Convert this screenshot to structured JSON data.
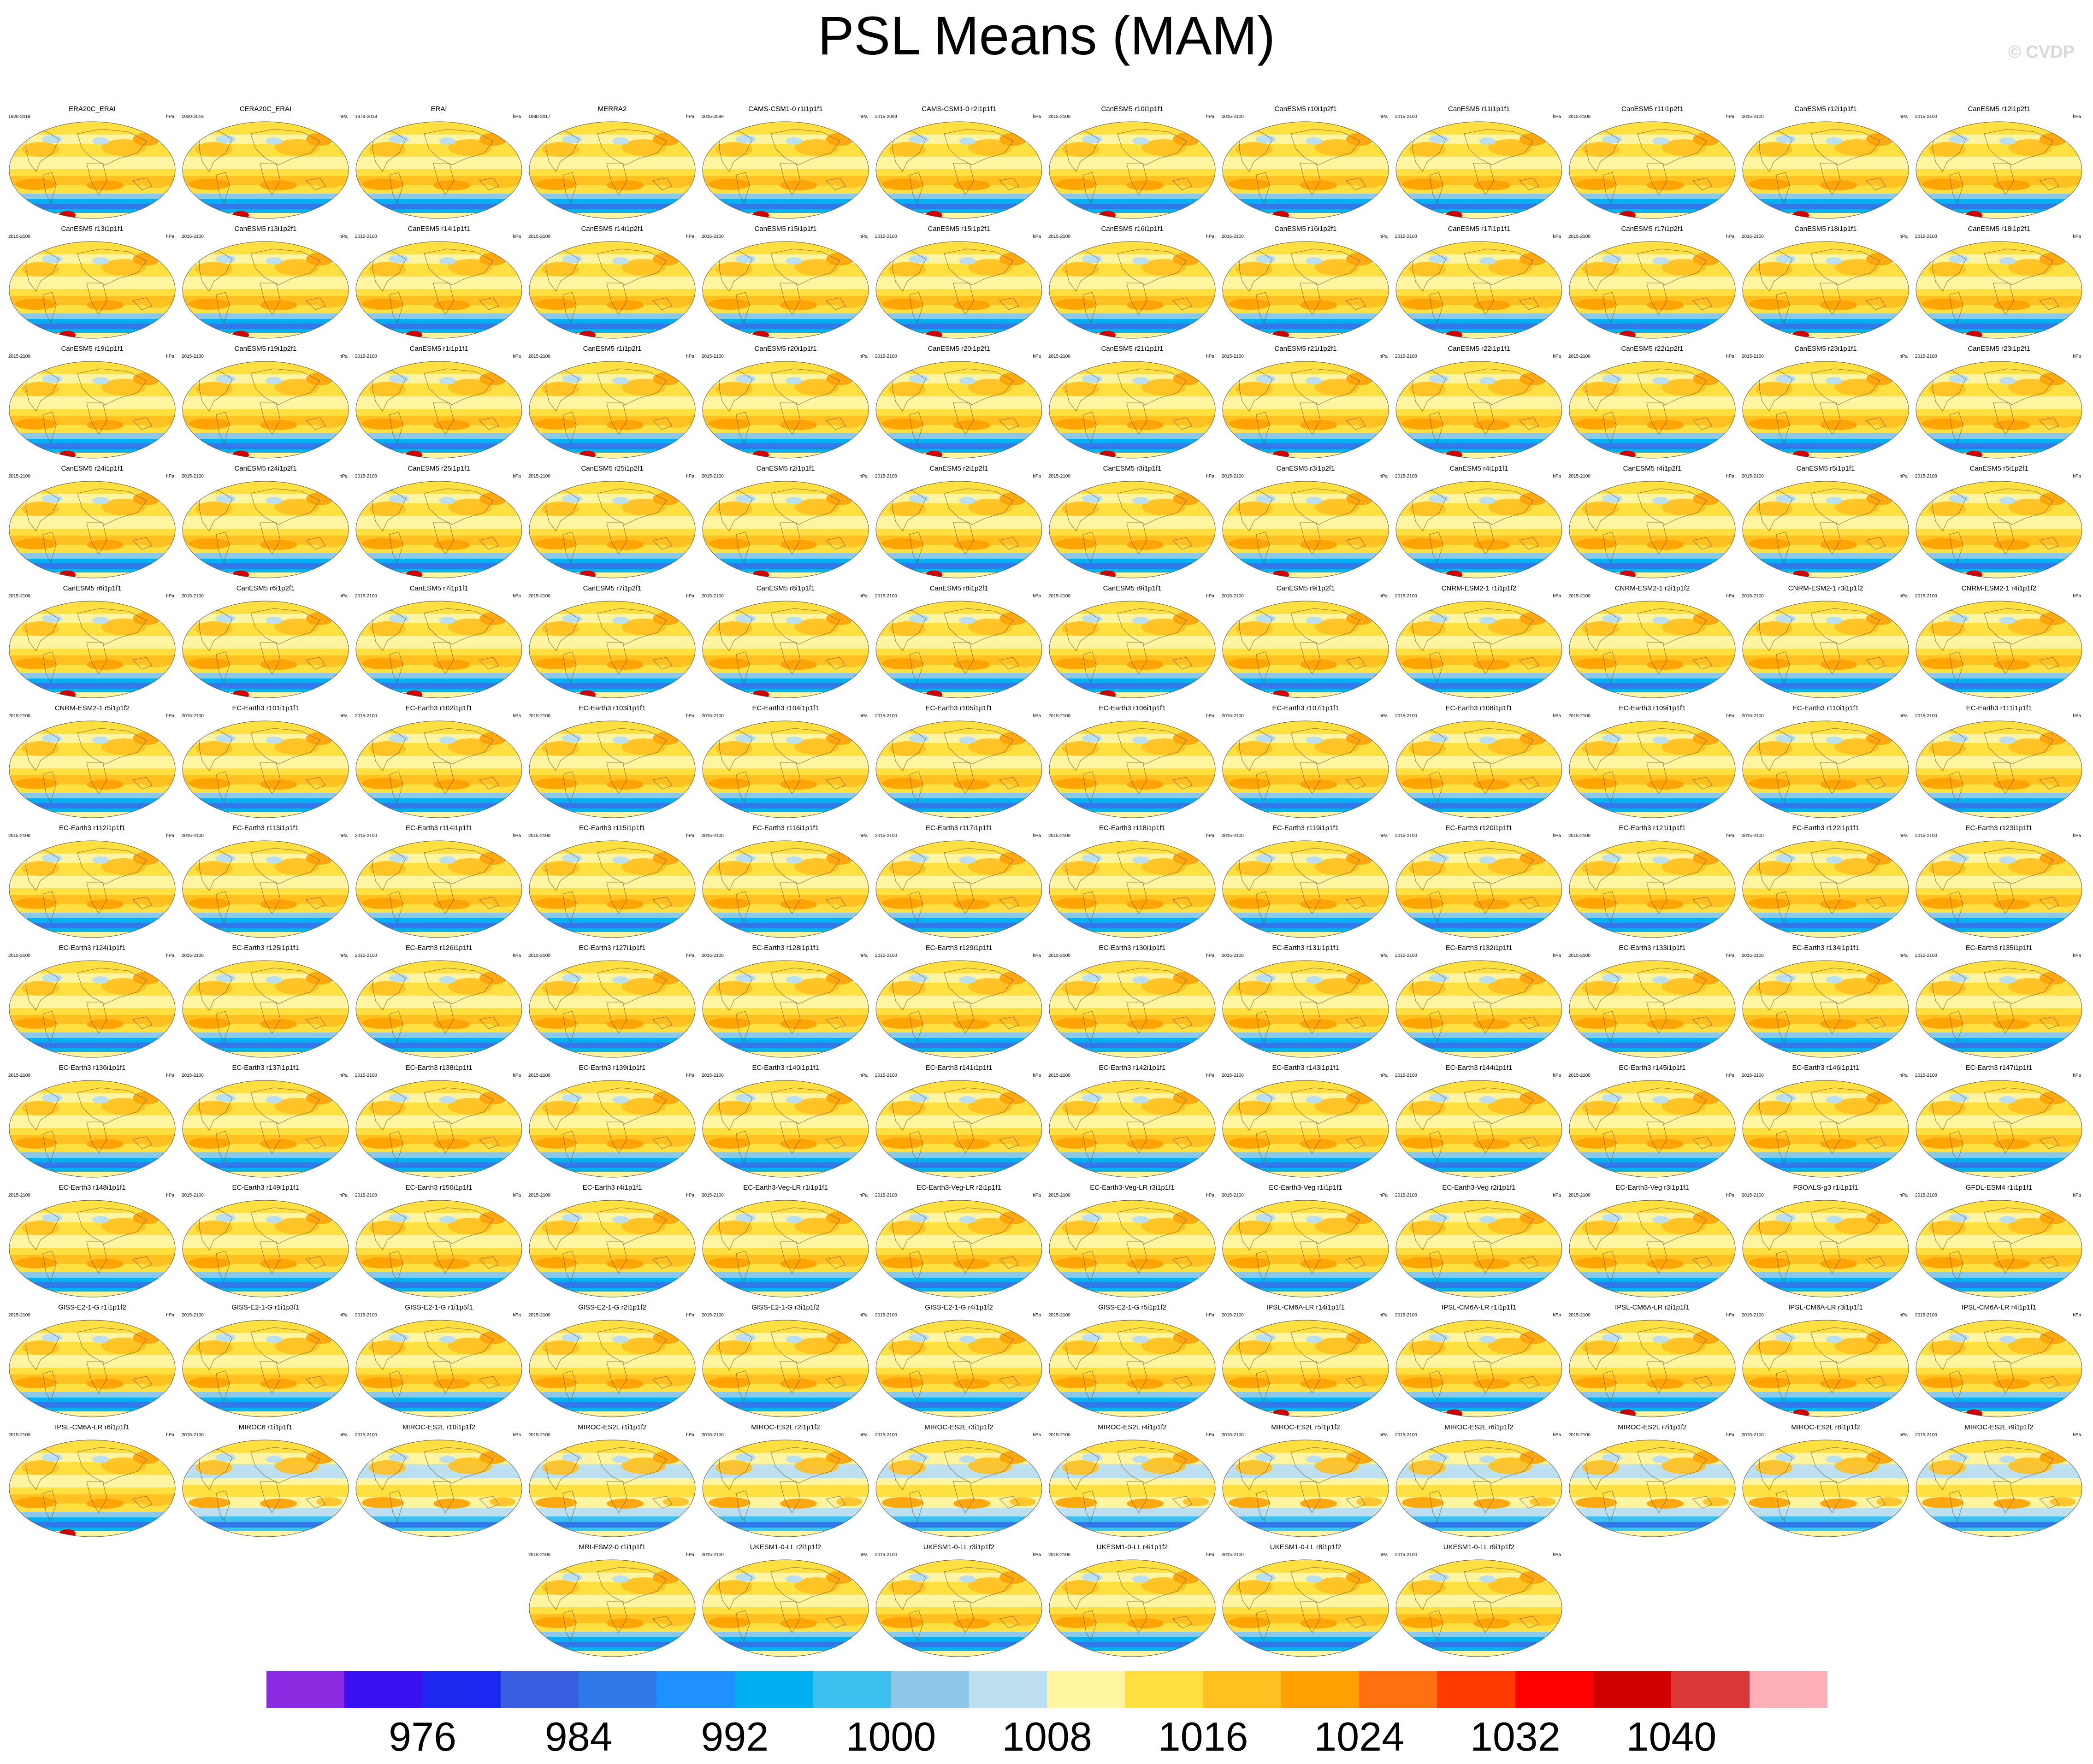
{
  "title": "PSL Means (MAM)",
  "copyright": "© CVDP",
  "chart_data": {
    "type": "heatmap",
    "title": "PSL Means (MAM)",
    "units": "hPa",
    "colorbar": {
      "tick_labels": [
        "976",
        "984",
        "992",
        "1000",
        "1008",
        "1016",
        "1024",
        "1032",
        "1040"
      ],
      "tick_values": [
        976,
        984,
        992,
        1000,
        1008,
        1016,
        1024,
        1032,
        1040
      ],
      "range": [
        968,
        1048
      ],
      "colors": [
        "#8a2be2",
        "#3a10f0",
        "#1a28f0",
        "#3a5ee0",
        "#2f7ae8",
        "#1e90ff",
        "#00b0f0",
        "#3cc0f0",
        "#8ec8e8",
        "#bde0f0",
        "#fff4a0",
        "#ffe040",
        "#ffc020",
        "#ffa000",
        "#ff7010",
        "#ff3a00",
        "#ff0000",
        "#d00000",
        "#d83838",
        "#ffb0b8"
      ]
    },
    "panels": [
      {
        "name": "ERA20C_ERAI",
        "years": "1920-2018"
      },
      {
        "name": "CERA20C_ERAI",
        "years": "1920-2018"
      },
      {
        "name": "ERAI",
        "years": "1979-2018"
      },
      {
        "name": "MERRA2",
        "years": "1980-2017"
      },
      {
        "name": "CAMS-CSM1-0 r1i1p1f1",
        "years": "2015-2099"
      },
      {
        "name": "CAMS-CSM1-0 r2i1p1f1",
        "years": "2015-2099"
      },
      {
        "name": "CanESM5 r10i1p1f1",
        "years": "2015-2100"
      },
      {
        "name": "CanESM5 r10i1p2f1",
        "years": "2015-2100"
      },
      {
        "name": "CanESM5 r11i1p1f1",
        "years": "2015-2100"
      },
      {
        "name": "CanESM5 r11i1p2f1",
        "years": "2015-2100"
      },
      {
        "name": "CanESM5 r12i1p1f1",
        "years": "2015-2100"
      },
      {
        "name": "CanESM5 r12i1p2f1",
        "years": "2015-2100"
      },
      {
        "name": "CanESM5 r13i1p1f1",
        "years": "2015-2100"
      },
      {
        "name": "CanESM5 r13i1p2f1",
        "years": "2015-2100"
      },
      {
        "name": "CanESM5 r14i1p1f1",
        "years": "2015-2100"
      },
      {
        "name": "CanESM5 r14i1p2f1",
        "years": "2015-2100"
      },
      {
        "name": "CanESM5 r15i1p1f1",
        "years": "2015-2100"
      },
      {
        "name": "CanESM5 r15i1p2f1",
        "years": "2015-2100"
      },
      {
        "name": "CanESM5 r16i1p1f1",
        "years": "2015-2100"
      },
      {
        "name": "CanESM5 r16i1p2f1",
        "years": "2015-2100"
      },
      {
        "name": "CanESM5 r17i1p1f1",
        "years": "2015-2100"
      },
      {
        "name": "CanESM5 r17i1p2f1",
        "years": "2015-2100"
      },
      {
        "name": "CanESM5 r18i1p1f1",
        "years": "2015-2100"
      },
      {
        "name": "CanESM5 r18i1p2f1",
        "years": "2015-2100"
      },
      {
        "name": "CanESM5 r19i1p1f1",
        "years": "2015-2100"
      },
      {
        "name": "CanESM5 r19i1p2f1",
        "years": "2015-2100"
      },
      {
        "name": "CanESM5 r1i1p1f1",
        "years": "2015-2100"
      },
      {
        "name": "CanESM5 r1i1p2f1",
        "years": "2015-2100"
      },
      {
        "name": "CanESM5 r20i1p1f1",
        "years": "2015-2100"
      },
      {
        "name": "CanESM5 r20i1p2f1",
        "years": "2015-2100"
      },
      {
        "name": "CanESM5 r21i1p1f1",
        "years": "2015-2100"
      },
      {
        "name": "CanESM5 r21i1p2f1",
        "years": "2015-2100"
      },
      {
        "name": "CanESM5 r22i1p1f1",
        "years": "2015-2100"
      },
      {
        "name": "CanESM5 r22i1p2f1",
        "years": "2015-2100"
      },
      {
        "name": "CanESM5 r23i1p1f1",
        "years": "2015-2100"
      },
      {
        "name": "CanESM5 r23i1p2f1",
        "years": "2015-2100"
      },
      {
        "name": "CanESM5 r24i1p1f1",
        "years": "2015-2100"
      },
      {
        "name": "CanESM5 r24i1p2f1",
        "years": "2015-2100"
      },
      {
        "name": "CanESM5 r25i1p1f1",
        "years": "2015-2100"
      },
      {
        "name": "CanESM5 r25i1p2f1",
        "years": "2015-2100"
      },
      {
        "name": "CanESM5 r2i1p1f1",
        "years": "2015-2100"
      },
      {
        "name": "CanESM5 r2i1p2f1",
        "years": "2015-2100"
      },
      {
        "name": "CanESM5 r3i1p1f1",
        "years": "2015-2100"
      },
      {
        "name": "CanESM5 r3i1p2f1",
        "years": "2015-2100"
      },
      {
        "name": "CanESM5 r4i1p1f1",
        "years": "2015-2100"
      },
      {
        "name": "CanESM5 r4i1p2f1",
        "years": "2015-2100"
      },
      {
        "name": "CanESM5 r5i1p1f1",
        "years": "2015-2100"
      },
      {
        "name": "CanESM5 r5i1p2f1",
        "years": "2015-2100"
      },
      {
        "name": "CanESM5 r6i1p1f1",
        "years": "2015-2100"
      },
      {
        "name": "CanESM5 r6i1p2f1",
        "years": "2015-2100"
      },
      {
        "name": "CanESM5 r7i1p1f1",
        "years": "2015-2100"
      },
      {
        "name": "CanESM5 r7i1p2f1",
        "years": "2015-2100"
      },
      {
        "name": "CanESM5 r8i1p1f1",
        "years": "2015-2100"
      },
      {
        "name": "CanESM5 r8i1p2f1",
        "years": "2015-2100"
      },
      {
        "name": "CanESM5 r9i1p1f1",
        "years": "2015-2100"
      },
      {
        "name": "CanESM5 r9i1p2f1",
        "years": "2015-2100"
      },
      {
        "name": "CNRM-ESM2-1 r1i1p1f2",
        "years": "2015-2100"
      },
      {
        "name": "CNRM-ESM2-1 r2i1p1f2",
        "years": "2015-2100"
      },
      {
        "name": "CNRM-ESM2-1 r3i1p1f2",
        "years": "2015-2100"
      },
      {
        "name": "CNRM-ESM2-1 r4i1p1f2",
        "years": "2015-2100"
      },
      {
        "name": "CNRM-ESM2-1 r5i1p1f2",
        "years": "2015-2100"
      },
      {
        "name": "EC-Earth3 r101i1p1f1",
        "years": "2015-2100"
      },
      {
        "name": "EC-Earth3 r102i1p1f1",
        "years": "2015-2100"
      },
      {
        "name": "EC-Earth3 r103i1p1f1",
        "years": "2015-2100"
      },
      {
        "name": "EC-Earth3 r104i1p1f1",
        "years": "2015-2100"
      },
      {
        "name": "EC-Earth3 r105i1p1f1",
        "years": "2015-2100"
      },
      {
        "name": "EC-Earth3 r106i1p1f1",
        "years": "2015-2100"
      },
      {
        "name": "EC-Earth3 r107i1p1f1",
        "years": "2015-2100"
      },
      {
        "name": "EC-Earth3 r108i1p1f1",
        "years": "2015-2100"
      },
      {
        "name": "EC-Earth3 r109i1p1f1",
        "years": "2015-2100"
      },
      {
        "name": "EC-Earth3 r110i1p1f1",
        "years": "2015-2100"
      },
      {
        "name": "EC-Earth3 r111i1p1f1",
        "years": "2015-2100"
      },
      {
        "name": "EC-Earth3 r112i1p1f1",
        "years": "2015-2100"
      },
      {
        "name": "EC-Earth3 r113i1p1f1",
        "years": "2015-2100"
      },
      {
        "name": "EC-Earth3 r114i1p1f1",
        "years": "2015-2100"
      },
      {
        "name": "EC-Earth3 r115i1p1f1",
        "years": "2015-2100"
      },
      {
        "name": "EC-Earth3 r116i1p1f1",
        "years": "2015-2100"
      },
      {
        "name": "EC-Earth3 r117i1p1f1",
        "years": "2015-2100"
      },
      {
        "name": "EC-Earth3 r118i1p1f1",
        "years": "2015-2100"
      },
      {
        "name": "EC-Earth3 r119i1p1f1",
        "years": "2015-2100"
      },
      {
        "name": "EC-Earth3 r120i1p1f1",
        "years": "2015-2100"
      },
      {
        "name": "EC-Earth3 r121i1p1f1",
        "years": "2015-2100"
      },
      {
        "name": "EC-Earth3 r122i1p1f1",
        "years": "2015-2100"
      },
      {
        "name": "EC-Earth3 r123i1p1f1",
        "years": "2015-2100"
      },
      {
        "name": "EC-Earth3 r124i1p1f1",
        "years": "2015-2100"
      },
      {
        "name": "EC-Earth3 r125i1p1f1",
        "years": "2015-2100"
      },
      {
        "name": "EC-Earth3 r126i1p1f1",
        "years": "2015-2100"
      },
      {
        "name": "EC-Earth3 r127i1p1f1",
        "years": "2015-2100"
      },
      {
        "name": "EC-Earth3 r128i1p1f1",
        "years": "2015-2100"
      },
      {
        "name": "EC-Earth3 r129i1p1f1",
        "years": "2015-2100"
      },
      {
        "name": "EC-Earth3 r130i1p1f1",
        "years": "2015-2100"
      },
      {
        "name": "EC-Earth3 r131i1p1f1",
        "years": "2015-2100"
      },
      {
        "name": "EC-Earth3 r132i1p1f1",
        "years": "2015-2100"
      },
      {
        "name": "EC-Earth3 r133i1p1f1",
        "years": "2015-2100"
      },
      {
        "name": "EC-Earth3 r134i1p1f1",
        "years": "2015-2100"
      },
      {
        "name": "EC-Earth3 r135i1p1f1",
        "years": "2015-2100"
      },
      {
        "name": "EC-Earth3 r136i1p1f1",
        "years": "2015-2100"
      },
      {
        "name": "EC-Earth3 r137i1p1f1",
        "years": "2015-2100"
      },
      {
        "name": "EC-Earth3 r138i1p1f1",
        "years": "2015-2100"
      },
      {
        "name": "EC-Earth3 r139i1p1f1",
        "years": "2015-2100"
      },
      {
        "name": "EC-Earth3 r140i1p1f1",
        "years": "2015-2100"
      },
      {
        "name": "EC-Earth3 r141i1p1f1",
        "years": "2015-2100"
      },
      {
        "name": "EC-Earth3 r142i1p1f1",
        "years": "2015-2100"
      },
      {
        "name": "EC-Earth3 r143i1p1f1",
        "years": "2015-2100"
      },
      {
        "name": "EC-Earth3 r144i1p1f1",
        "years": "2015-2100"
      },
      {
        "name": "EC-Earth3 r145i1p1f1",
        "years": "2015-2100"
      },
      {
        "name": "EC-Earth3 r146i1p1f1",
        "years": "2015-2100"
      },
      {
        "name": "EC-Earth3 r147i1p1f1",
        "years": "2015-2100"
      },
      {
        "name": "EC-Earth3 r148i1p1f1",
        "years": "2015-2100"
      },
      {
        "name": "EC-Earth3 r149i1p1f1",
        "years": "2015-2100"
      },
      {
        "name": "EC-Earth3 r150i1p1f1",
        "years": "2015-2100"
      },
      {
        "name": "EC-Earth3 r4i1p1f1",
        "years": "2015-2100"
      },
      {
        "name": "EC-Earth3-Veg-LR r1i1p1f1",
        "years": "2015-2100"
      },
      {
        "name": "EC-Earth3-Veg-LR r2i1p1f1",
        "years": "2015-2100"
      },
      {
        "name": "EC-Earth3-Veg-LR r3i1p1f1",
        "years": "2015-2100"
      },
      {
        "name": "EC-Earth3-Veg r1i1p1f1",
        "years": "2015-2100"
      },
      {
        "name": "EC-Earth3-Veg r2i1p1f1",
        "years": "2015-2100"
      },
      {
        "name": "EC-Earth3-Veg r3i1p1f1",
        "years": "2015-2100"
      },
      {
        "name": "FGOALS-g3 r1i1p1f1",
        "years": "2015-2100"
      },
      {
        "name": "GFDL-ESM4 r1i1p1f1",
        "years": "2015-2100"
      },
      {
        "name": "GISS-E2-1-G r1i1p1f2",
        "years": "2015-2100"
      },
      {
        "name": "GISS-E2-1-G r1i1p3f1",
        "years": "2015-2100"
      },
      {
        "name": "GISS-E2-1-G r1i1p5f1",
        "years": "2015-2100"
      },
      {
        "name": "GISS-E2-1-G r2i1p1f2",
        "years": "2015-2100"
      },
      {
        "name": "GISS-E2-1-G r3i1p1f2",
        "years": "2015-2100"
      },
      {
        "name": "GISS-E2-1-G r4i1p1f2",
        "years": "2015-2100"
      },
      {
        "name": "GISS-E2-1-G r5i1p1f2",
        "years": "2015-2100"
      },
      {
        "name": "IPSL-CM6A-LR r14i1p1f1",
        "years": "2015-2100"
      },
      {
        "name": "IPSL-CM6A-LR r1i1p1f1",
        "years": "2015-2100"
      },
      {
        "name": "IPSL-CM6A-LR r2i1p1f1",
        "years": "2015-2100"
      },
      {
        "name": "IPSL-CM6A-LR r3i1p1f1",
        "years": "2015-2100"
      },
      {
        "name": "IPSL-CM6A-LR r4i1p1f1",
        "years": "2015-2100"
      },
      {
        "name": "IPSL-CM6A-LR r6i1p1f1",
        "years": "2015-2100"
      },
      {
        "name": "MIROC6 r1i1p1f1",
        "years": "2015-2100"
      },
      {
        "name": "MIROC-ES2L r10i1p1f2",
        "years": "2015-2100"
      },
      {
        "name": "MIROC-ES2L r1i1p1f2",
        "years": "2015-2100"
      },
      {
        "name": "MIROC-ES2L r2i1p1f2",
        "years": "2015-2100"
      },
      {
        "name": "MIROC-ES2L r3i1p1f2",
        "years": "2015-2100"
      },
      {
        "name": "MIROC-ES2L r4i1p1f2",
        "years": "2015-2100"
      },
      {
        "name": "MIROC-ES2L r5i1p1f2",
        "years": "2015-2100"
      },
      {
        "name": "MIROC-ES2L r6i1p1f2",
        "years": "2015-2100"
      },
      {
        "name": "MIROC-ES2L r7i1p1f2",
        "years": "2015-2100"
      },
      {
        "name": "MIROC-ES2L r8i1p1f2",
        "years": "2015-2100"
      },
      {
        "name": "MIROC-ES2L r9i1p1f2",
        "years": "2015-2100"
      },
      {
        "name": "MRI-ESM2-0 r1i1p1f1",
        "years": "2015-2100"
      },
      {
        "name": "UKESM1-0-LL r2i1p1f2",
        "years": "2015-2100"
      },
      {
        "name": "UKESM1-0-LL r3i1p1f2",
        "years": "2015-2100"
      },
      {
        "name": "UKESM1-0-LL r4i1p1f2",
        "years": "2015-2100"
      },
      {
        "name": "UKESM1-0-LL r8i1p1f2",
        "years": "2015-2100"
      },
      {
        "name": "UKESM1-0-LL r9i1p1f2",
        "years": "2015-2100"
      }
    ]
  }
}
